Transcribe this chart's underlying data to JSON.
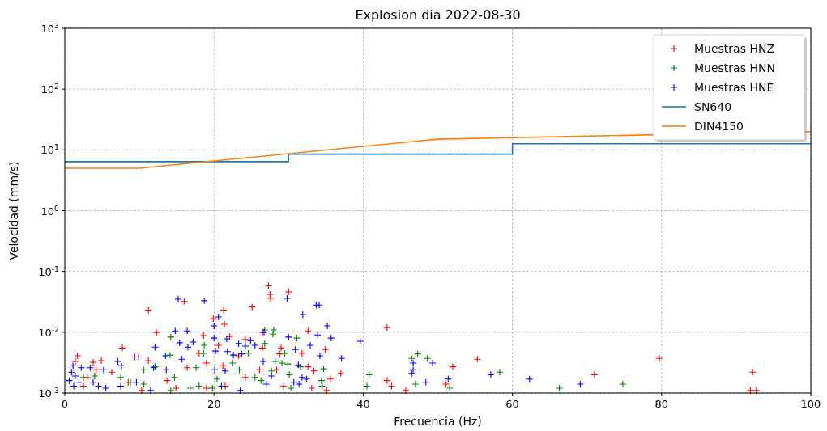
{
  "chart_data": {
    "type": "scatter",
    "title": "Explosion dia 2022-08-30",
    "xlabel": "Frecuencia (Hz)",
    "ylabel": "Velocidad (mm/s)",
    "log": "y",
    "grid": true,
    "legend": "top right",
    "marker": "cross",
    "xlim": [
      0,
      100
    ],
    "xticks": [
      0,
      20,
      40,
      60,
      80,
      100
    ],
    "ylim": [
      0.001,
      1000
    ],
    "yticks": [
      {
        "value": 0.001,
        "label": "10$^{-3}$"
      },
      {
        "value": 0.01,
        "label": "10$^{-2}$"
      },
      {
        "value": 0.1,
        "label": "10$^{-1}$"
      },
      {
        "value": 1,
        "label": "10$^{0}$"
      },
      {
        "value": 10,
        "label": "10$^{1}$"
      },
      {
        "value": 100,
        "label": "10$^{2}$"
      },
      {
        "value": 1000,
        "label": "10$^{3}$"
      }
    ],
    "series": [
      {
        "name": "Muestras HNZ",
        "color": "#ff0000",
        "x": [
          16.0,
          11.2,
          21.3,
          19.9,
          21.4,
          12.3,
          7.7,
          18.6,
          22.1,
          20.6,
          18.0,
          19.0,
          11.2,
          9.4,
          4.9,
          3.8,
          1.7,
          1.4,
          6.3,
          4.2,
          3.0,
          13.7,
          16.4,
          21.2,
          23.3,
          14.9,
          8.5,
          10.3,
          21.5,
          19.0,
          2.5,
          27.3,
          30.0,
          27.5,
          27.6,
          25.1,
          26.5,
          32.6,
          43.2,
          24.2,
          29.0,
          26.5,
          34.9,
          28.8,
          31.8,
          26.1,
          28.4,
          32.6,
          33.4,
          37.0,
          24.2,
          35.6,
          29.3,
          33.1,
          35.1,
          43.2,
          43.8,
          45.7,
          52.0,
          55.3,
          51.1,
          71.0,
          79.7,
          92.2,
          91.9,
          92.7
        ],
        "values": [
          0.032,
          0.023,
          0.023,
          0.0167,
          0.0135,
          0.0099,
          0.0055,
          0.0088,
          0.0085,
          0.0061,
          0.0045,
          0.0031,
          0.0034,
          0.0039,
          0.0034,
          0.0032,
          0.0041,
          0.0033,
          0.0022,
          0.0024,
          0.0018,
          0.0016,
          0.0026,
          0.0028,
          0.0041,
          0.0012,
          0.0015,
          0.0011,
          0.0013,
          0.0012,
          0.0013,
          0.058,
          0.046,
          0.042,
          0.036,
          0.026,
          0.01,
          0.0105,
          0.0119,
          0.0076,
          0.0055,
          0.0055,
          0.0052,
          0.0044,
          0.0045,
          0.0024,
          0.0024,
          0.0027,
          0.0023,
          0.0021,
          0.0018,
          0.0017,
          0.0013,
          0.0012,
          0.0011,
          0.0016,
          0.0013,
          0.0011,
          0.0027,
          0.0036,
          0.0014,
          0.002,
          0.0037,
          0.0022,
          0.0011,
          0.0011
        ]
      },
      {
        "name": "Muestras HNN",
        "color": "#008000",
        "x": [
          14.2,
          14.1,
          7.5,
          10.6,
          12.1,
          14.7,
          18.7,
          18.6,
          17.6,
          22.5,
          23.4,
          20.4,
          18.0,
          16.8,
          19.8,
          14.2,
          8.8,
          4.0,
          2.5,
          10.6,
          26.8,
          28.0,
          27.9,
          26.8,
          24.6,
          31.1,
          29.5,
          28.2,
          29.1,
          29.9,
          31.6,
          34.7,
          25.5,
          27.7,
          30.1,
          34.4,
          26.3,
          30.3,
          34.5,
          40.8,
          40.5,
          46.5,
          47.3,
          48.6,
          47.0,
          58.3,
          51.6,
          66.3,
          74.8
        ],
        "values": [
          0.0083,
          0.0042,
          0.0018,
          0.0024,
          0.0027,
          0.0018,
          0.0061,
          0.0045,
          0.0026,
          0.0031,
          0.0024,
          0.0017,
          0.0013,
          0.0012,
          0.0012,
          0.0011,
          0.0015,
          0.0019,
          0.0018,
          0.0014,
          0.0109,
          0.0109,
          0.0093,
          0.0065,
          0.0045,
          0.008,
          0.0045,
          0.0033,
          0.0031,
          0.003,
          0.0027,
          0.0025,
          0.0018,
          0.0023,
          0.002,
          0.0016,
          0.0016,
          0.0012,
          0.0013,
          0.002,
          0.0013,
          0.0037,
          0.0044,
          0.0037,
          0.0014,
          0.0022,
          0.0012,
          0.0012,
          0.0014
        ]
      },
      {
        "name": "Muestras HNE",
        "color": "#0000ff",
        "x": [
          15.2,
          18.7,
          20.6,
          20.0,
          14.8,
          16.4,
          12.1,
          15.4,
          16.5,
          17.2,
          20.0,
          21.7,
          20.2,
          21.8,
          23.3,
          24.2,
          22.6,
          23.7,
          13.5,
          15.7,
          20.1,
          21.5,
          7.1,
          7.6,
          9.9,
          11.9,
          13.6,
          5.2,
          3.4,
          9.6,
          7.5,
          5.5,
          11.5,
          21.0,
          23.5,
          1.1,
          0.9,
          1.4,
          0.6,
          1.9,
          1.2,
          2.2,
          3.8,
          4.5,
          29.8,
          33.7,
          34.1,
          31.9,
          35.2,
          26.7,
          30.0,
          33.9,
          35.7,
          39.6,
          24.9,
          25.5,
          30.9,
          32.9,
          34.2,
          37.1,
          26.6,
          31.3,
          27.7,
          31.8,
          32.4,
          27.0,
          30.7,
          31.4,
          46.7,
          46.7,
          46.5,
          48.4,
          49.3,
          51.4,
          57.1,
          62.3,
          69.1
        ],
        "values": [
          0.035,
          0.033,
          0.0178,
          0.0127,
          0.0105,
          0.0105,
          0.0057,
          0.0067,
          0.0057,
          0.0069,
          0.008,
          0.0078,
          0.0049,
          0.0048,
          0.0065,
          0.0059,
          0.0042,
          0.0044,
          0.0041,
          0.0036,
          0.0024,
          0.0023,
          0.0033,
          0.0028,
          0.0039,
          0.0026,
          0.0024,
          0.0024,
          0.0026,
          0.0015,
          0.0013,
          0.0012,
          0.0011,
          0.0013,
          0.0011,
          0.0028,
          0.0022,
          0.0019,
          0.0016,
          0.0015,
          0.0013,
          0.0026,
          0.0015,
          0.0013,
          0.036,
          0.028,
          0.028,
          0.0195,
          0.0127,
          0.01,
          0.0083,
          0.009,
          0.008,
          0.0071,
          0.0073,
          0.0061,
          0.0052,
          0.0061,
          0.0041,
          0.0037,
          0.0033,
          0.0029,
          0.0019,
          0.0018,
          0.0017,
          0.0014,
          0.0015,
          0.0014,
          0.0031,
          0.0024,
          0.0021,
          0.0015,
          0.0031,
          0.0017,
          0.002,
          0.0017,
          0.0014
        ]
      },
      {
        "name": "SN640",
        "type": "line",
        "marker": "none",
        "color": "#1f77b4",
        "x": [
          0,
          30,
          30,
          60,
          60,
          100
        ],
        "values": [
          6.4,
          6.4,
          8.5,
          8.5,
          12.6,
          12.6
        ]
      },
      {
        "name": "DIN4150",
        "type": "line",
        "marker": "none",
        "color": "#ff7f0e",
        "x": [
          0,
          10,
          50,
          100
        ],
        "values": [
          5,
          5,
          15,
          20
        ]
      }
    ]
  }
}
